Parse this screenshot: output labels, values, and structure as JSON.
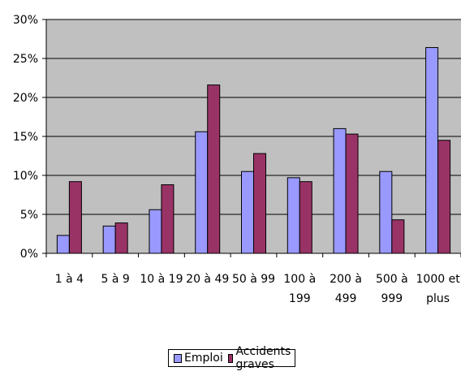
{
  "chart_data": {
    "type": "bar",
    "categories": [
      [
        "1 à 4"
      ],
      [
        "5 à 9"
      ],
      [
        "10 à 19"
      ],
      [
        "20 à 49"
      ],
      [
        "50 à 99"
      ],
      [
        "100 à",
        "199"
      ],
      [
        "200 à",
        "499"
      ],
      [
        "500 à",
        "999"
      ],
      [
        "1000 et",
        "plus"
      ]
    ],
    "series": [
      {
        "name": "Emploi",
        "color": "#9999ff",
        "values": [
          2.3,
          3.5,
          5.6,
          15.6,
          10.5,
          9.7,
          16.0,
          10.5,
          26.4
        ]
      },
      {
        "name": "Accidents graves",
        "color": "#993366",
        "values": [
          9.2,
          3.9,
          8.8,
          21.6,
          12.8,
          9.2,
          15.3,
          4.3,
          14.5
        ]
      }
    ],
    "yticks": [
      "0%",
      "5%",
      "10%",
      "15%",
      "20%",
      "25%",
      "30%"
    ],
    "ylim": [
      0,
      30
    ],
    "grid": "horizontal",
    "plot_background": "#c0c0c0",
    "legend_position": "bottom"
  }
}
